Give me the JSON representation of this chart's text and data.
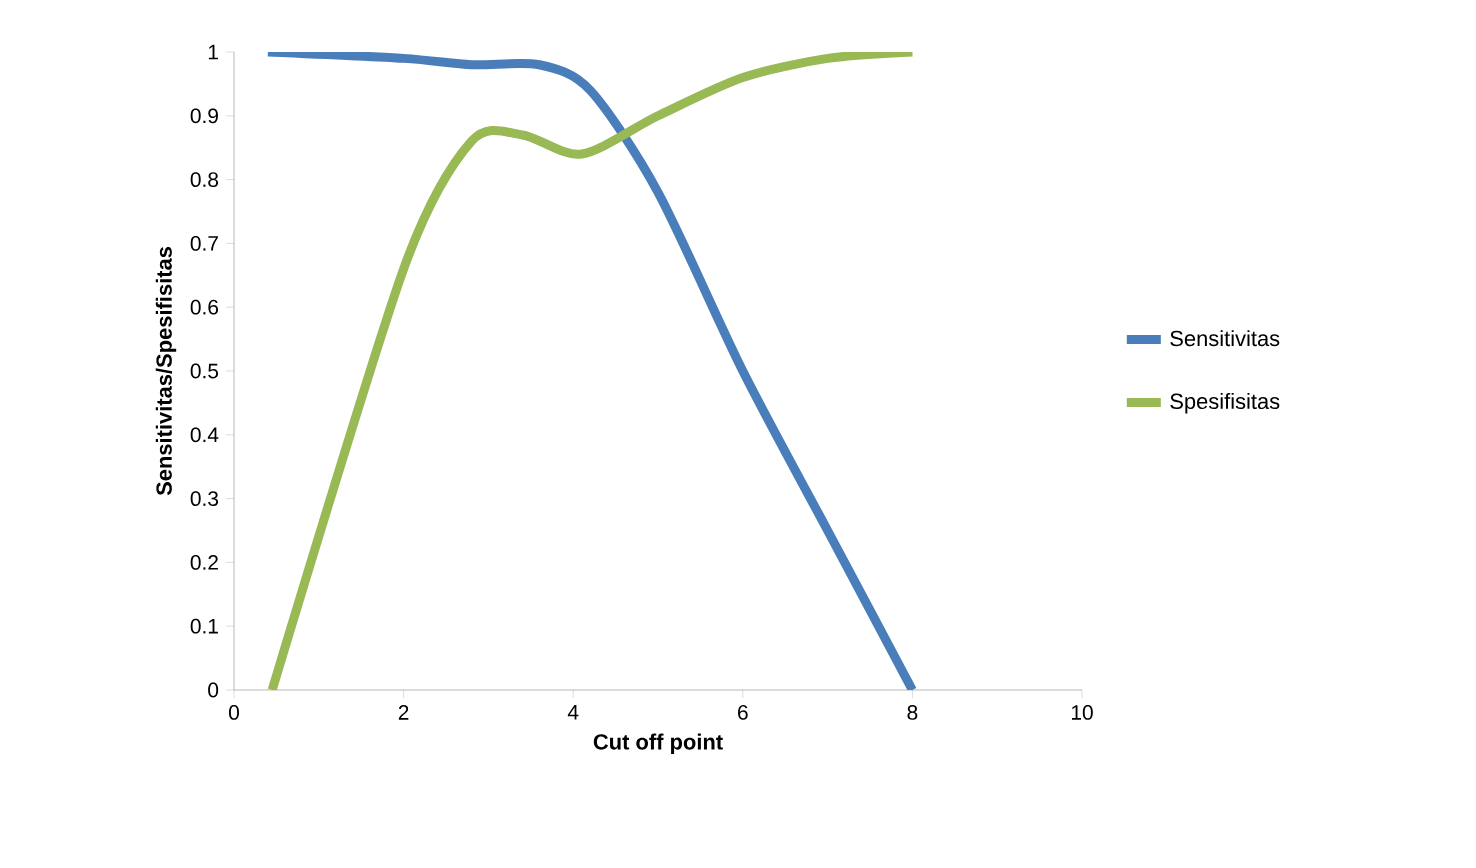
{
  "chart_data": {
    "type": "line",
    "xlabel": "Cut off point",
    "ylabel": "Sensitivitas/Spesifisitas",
    "xlim": [
      0,
      10
    ],
    "ylim": [
      0,
      1
    ],
    "xticks": [
      0,
      2,
      4,
      6,
      8,
      10
    ],
    "yticks": [
      0,
      0.1,
      0.2,
      0.3,
      0.4,
      0.5,
      0.6,
      0.7,
      0.8,
      0.9,
      1
    ],
    "legend": "right",
    "line_style": "solid",
    "series": [
      {
        "name": "Sensitivitas",
        "color": "#4a7ebb",
        "x": [
          0.4,
          2,
          2.8,
          3.6,
          4.2,
          5,
          6,
          7,
          8
        ],
        "values": [
          1,
          0.99,
          0.98,
          0.98,
          0.94,
          0.78,
          0.5,
          0.25,
          0
        ]
      },
      {
        "name": "Spesifisitas",
        "color": "#98b954",
        "x": [
          0.45,
          2,
          2.8,
          3.4,
          4.1,
          5,
          6,
          7,
          8
        ],
        "values": [
          0,
          0.66,
          0.86,
          0.87,
          0.84,
          0.9,
          0.96,
          0.99,
          1
        ]
      }
    ]
  }
}
